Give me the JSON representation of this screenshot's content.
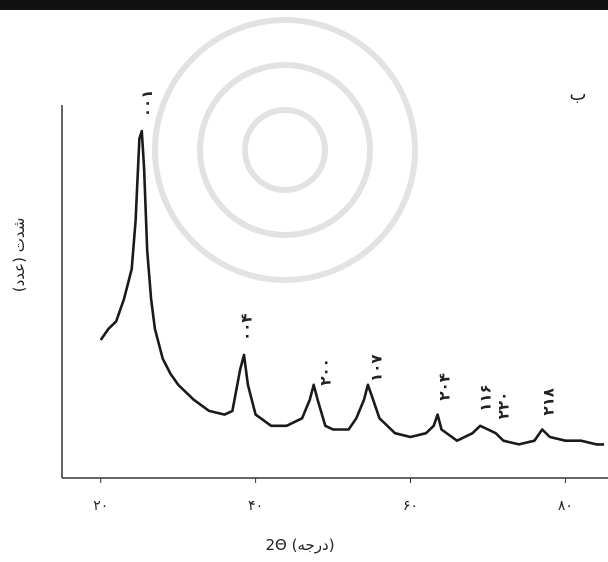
{
  "chart_data": {
    "type": "line",
    "panel_label": "ب",
    "x_label": "2Θ (درجه)",
    "y_label": "شدت (عدد)",
    "xlim": [
      15,
      85.5
    ],
    "ylim": [
      0,
      100
    ],
    "xticks": [
      {
        "value": 20,
        "label": "۲۰"
      },
      {
        "value": 40,
        "label": "۴۰"
      },
      {
        "value": 60,
        "label": "۶۰"
      },
      {
        "value": 80,
        "label": "۸۰"
      }
    ],
    "series": [
      {
        "color": "#1a1a1a",
        "x": [
          20,
          21,
          22,
          23,
          24,
          24.5,
          25,
          25.3,
          25.6,
          26,
          26.5,
          27,
          28,
          29,
          30,
          32,
          34,
          36,
          37,
          38,
          38.5,
          39,
          40,
          42,
          44,
          46,
          47,
          47.5,
          48,
          49,
          50,
          52,
          53,
          54,
          54.5,
          55,
          56,
          58,
          60,
          62,
          63,
          63.5,
          64,
          66,
          68,
          69,
          70,
          71,
          72,
          74,
          76,
          77,
          78,
          80,
          82,
          84,
          85
        ],
        "values": [
          37,
          40,
          42,
          48,
          56,
          69,
          91,
          93,
          83,
          61,
          48,
          40,
          32,
          28,
          25,
          21,
          18,
          17,
          18,
          29,
          33,
          25,
          17,
          14,
          14,
          16,
          21,
          25,
          21,
          14,
          13,
          13,
          16,
          21,
          25,
          22,
          16,
          12,
          11,
          12,
          14,
          17,
          13,
          10,
          12,
          14,
          13,
          12,
          10,
          9,
          10,
          13,
          11,
          10,
          10,
          9,
          9
        ]
      }
    ],
    "annotations": [
      {
        "text": "۰۰۱",
        "x": 26
      },
      {
        "text": "۰۰۴",
        "x": 38.8
      },
      {
        "text": "۲۰۰",
        "x": 49
      },
      {
        "text": "۱۰۷",
        "x": 55.6
      },
      {
        "text": "۲۰۴",
        "x": 64.4
      },
      {
        "text": "۱۱۶",
        "x": 69.7
      },
      {
        "text": "۲۲۰",
        "x": 72
      },
      {
        "text": "۲۱۸",
        "x": 77.8
      }
    ]
  }
}
